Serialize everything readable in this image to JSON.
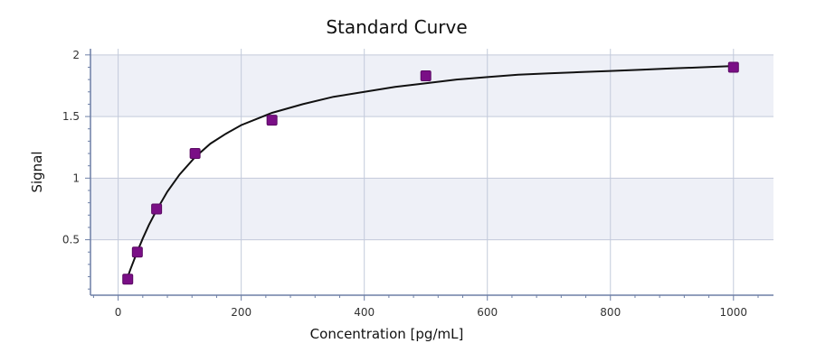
{
  "chart_data": {
    "type": "scatter",
    "title": "Standard Curve",
    "xlabel": "Concentration [pg/mL]",
    "ylabel": "Signal",
    "xlim": [
      -45,
      1065
    ],
    "ylim": [
      0.05,
      2.05
    ],
    "xticks": [
      0,
      200,
      400,
      600,
      800,
      1000
    ],
    "yticks": [
      0.5,
      1,
      1.5,
      2
    ],
    "ytick_labels": [
      "0.5",
      "1",
      "1.5",
      "2"
    ],
    "grid": true,
    "colors": {
      "marker": "#7a0f86",
      "curve": "#111111",
      "band": "#eef0f7",
      "grid": "#c3cadb",
      "axis": "#6d7fa6"
    },
    "series": [
      {
        "type": "scatter",
        "x": [
          15.6,
          31.2,
          62.5,
          125,
          250,
          500,
          1000
        ],
        "y": [
          0.18,
          0.4,
          0.75,
          1.2,
          1.47,
          1.83,
          1.9
        ]
      },
      {
        "type": "line",
        "x": [
          12,
          20,
          30,
          40,
          50,
          62.5,
          80,
          100,
          125,
          150,
          175,
          200,
          225,
          250,
          300,
          350,
          400,
          450,
          500,
          550,
          600,
          650,
          700,
          750,
          800,
          850,
          900,
          950,
          1000
        ],
        "y": [
          0.15,
          0.26,
          0.39,
          0.51,
          0.62,
          0.74,
          0.89,
          1.03,
          1.17,
          1.28,
          1.36,
          1.43,
          1.48,
          1.53,
          1.6,
          1.66,
          1.7,
          1.74,
          1.77,
          1.8,
          1.82,
          1.84,
          1.85,
          1.86,
          1.87,
          1.88,
          1.89,
          1.9,
          1.91
        ]
      }
    ]
  }
}
